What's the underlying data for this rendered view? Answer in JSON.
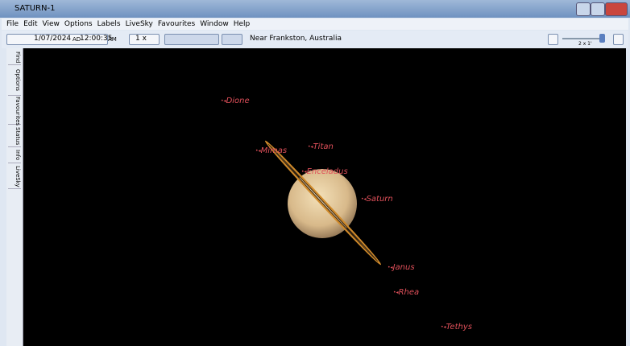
{
  "window": {
    "title": "SATURN-1"
  },
  "menu": [
    "File",
    "Edit",
    "View",
    "Options",
    "Labels",
    "LiveSky",
    "Favourites",
    "Window",
    "Help"
  ],
  "toolbar": {
    "date": "1/07/2024",
    "era": "AD",
    "time": "12:00:35",
    "ampm": "AM",
    "rate": "1 x",
    "location": "Near Frankston, Australia",
    "zoom": "2 x 1'"
  },
  "sidebar": [
    "Find",
    "Options",
    "Favourites",
    "Status",
    "Info",
    "LiveSky"
  ],
  "objects": [
    "Dione",
    "Titan",
    "Mimas",
    "Enceladus",
    "Saturn",
    "Janus",
    "Rhea",
    "Tethys"
  ]
}
